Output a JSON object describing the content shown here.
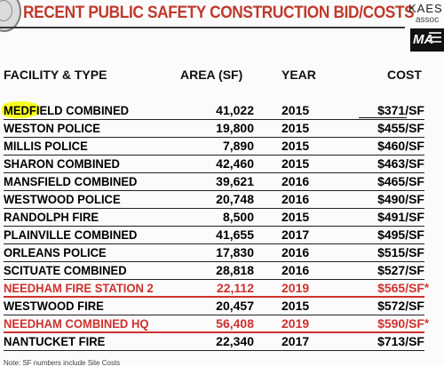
{
  "title": "RECENT PUBLIC SAFETY CONSTRUCTION BID/COSTS",
  "logo": {
    "line1": "KAES",
    "line2": "assoc",
    "ma": "MA"
  },
  "columns": {
    "facility": "FACILITY & TYPE",
    "area": "AREA (SF)",
    "year": "YEAR",
    "cost": "COST"
  },
  "rows": [
    {
      "facility": "MEDFIELD COMBINED",
      "area": "41,022",
      "year": "2015",
      "cost": "$371/SF",
      "highlight": true
    },
    {
      "facility": "WESTON POLICE",
      "area": "19,800",
      "year": "2015",
      "cost": "$455/SF"
    },
    {
      "facility": "MILLIS POLICE",
      "area": "7,890",
      "year": "2015",
      "cost": "$460/SF"
    },
    {
      "facility": "SHARON COMBINED",
      "area": "42,460",
      "year": "2015",
      "cost": "$463/SF"
    },
    {
      "facility": "MANSFIELD COMBINED",
      "area": "39,621",
      "year": "2016",
      "cost": "$465/SF"
    },
    {
      "facility": "WESTWOOD POLICE",
      "area": "20,748",
      "year": "2016",
      "cost": "$490/SF"
    },
    {
      "facility": "RANDOLPH FIRE",
      "area": "8,500",
      "year": "2015",
      "cost": "$491/SF"
    },
    {
      "facility": "PLAINVILLE COMBINED",
      "area": "41,655",
      "year": "2017",
      "cost": "$495/SF"
    },
    {
      "facility": "ORLEANS POLICE",
      "area": "17,830",
      "year": "2016",
      "cost": "$515/SF"
    },
    {
      "facility": "SCITUATE COMBINED",
      "area": "28,818",
      "year": "2016",
      "cost": "$527/SF"
    },
    {
      "facility": "NEEDHAM FIRE STATION 2",
      "area": "22,112",
      "year": "2019",
      "cost": "$565/SF",
      "red": true,
      "star": "*"
    },
    {
      "facility": "WESTWOOD FIRE",
      "area": "20,457",
      "year": "2015",
      "cost": "$572/SF"
    },
    {
      "facility": "NEEDHAM COMBINED HQ",
      "area": "56,408",
      "year": "2019",
      "cost": "$590/SF",
      "red": true,
      "star": "*"
    },
    {
      "facility": "NANTUCKET FIRE",
      "area": "22,340",
      "year": "2017",
      "cost": "$713/SF"
    }
  ],
  "footnote": "Note: SF numbers include Site Costs"
}
